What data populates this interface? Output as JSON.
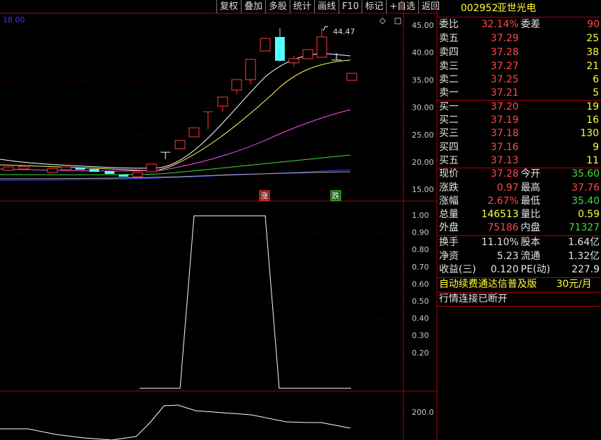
{
  "toolbar": [
    "复权",
    "叠加",
    "多股",
    "统计",
    "画线",
    "F10",
    "标记",
    "+自选",
    "返回"
  ],
  "chart": {
    "corner_value": "18.00",
    "high_label": "44.47",
    "rise_tag": "涨",
    "fall_tag": "跌",
    "main_axis": [
      "45.00",
      "40.00",
      "35.00",
      "30.00",
      "25.00",
      "20.00",
      "15.00"
    ],
    "sub_axis": [
      "1.00",
      "0.90",
      "0.80",
      "0.70",
      "0.60",
      "0.50",
      "0.40",
      "0.30",
      "0.20"
    ],
    "vol_axis": [
      "200.0"
    ]
  },
  "stock": {
    "code": "002952",
    "name": "亚世光电"
  },
  "panel": {
    "rows": [
      [
        "委比",
        "32.14%",
        "委差",
        "90"
      ],
      [
        "卖五",
        "37.29",
        "25"
      ],
      [
        "卖四",
        "37.28",
        "38"
      ],
      [
        "卖三",
        "37.27",
        "21"
      ],
      [
        "卖二",
        "37.25",
        "6"
      ],
      [
        "卖一",
        "37.21",
        "5"
      ],
      [
        "买一",
        "37.20",
        "19"
      ],
      [
        "买二",
        "37.19",
        "16"
      ],
      [
        "买三",
        "37.18",
        "130"
      ],
      [
        "买四",
        "37.16",
        "9"
      ],
      [
        "买五",
        "37.13",
        "11"
      ],
      [
        "现价",
        "37.28",
        "今开",
        "35.60"
      ],
      [
        "涨跌",
        "0.97",
        "最高",
        "37.76"
      ],
      [
        "涨幅",
        "2.67%",
        "最低",
        "35.40"
      ],
      [
        "总量",
        "146513",
        "量比",
        "0.59"
      ],
      [
        "外盘",
        "75186",
        "内盘",
        "71327"
      ],
      [
        "换手",
        "11.10%",
        "股本",
        "1.64亿"
      ],
      [
        "净资",
        "5.23",
        "流通",
        "1.32亿"
      ],
      [
        "收益(三)",
        "0.120",
        "PE(动)",
        "227.9"
      ]
    ],
    "promo": "自动续费通达信普及版",
    "price_tag": "30元/月",
    "status": "行情连接已断开"
  }
}
